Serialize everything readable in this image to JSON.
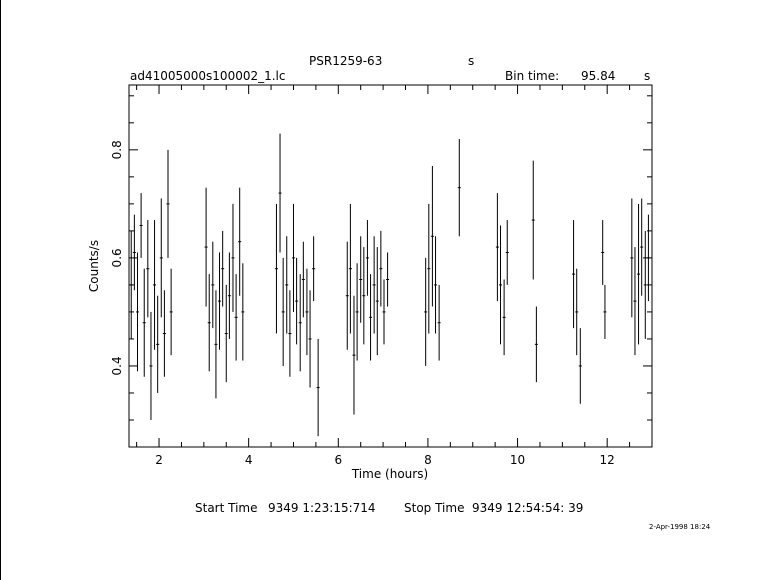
{
  "header": {
    "object": "PSR1259-63",
    "object_unit": "s",
    "filename": "ad41005000s100002_1.lc",
    "bin_label": "Bin time:",
    "bin_value": "95.84",
    "bin_unit": "s"
  },
  "footer": {
    "start_label": "Start Time",
    "start_value": "9349  1:23:15:714",
    "stop_label": "Stop Time",
    "stop_value": "9349 12:54:54: 39",
    "date_stamp": "2-Apr-1998 18:24"
  },
  "chart_data": {
    "type": "scatter",
    "xlabel": "Time (hours)",
    "ylabel": "Counts/s",
    "xlim": [
      1.33,
      13.0
    ],
    "ylim": [
      0.25,
      0.92
    ],
    "xticks": [
      2,
      4,
      6,
      8,
      10,
      12
    ],
    "yticks": [
      0.4,
      0.6,
      0.8
    ],
    "error_bars": true,
    "series": [
      {
        "points": [
          [
            1.38,
            0.55,
            0.1
          ],
          [
            1.45,
            0.61,
            0.07
          ],
          [
            1.52,
            0.5,
            0.11
          ],
          [
            1.6,
            0.66,
            0.06
          ],
          [
            1.67,
            0.48,
            0.1
          ],
          [
            1.75,
            0.58,
            0.09
          ],
          [
            1.82,
            0.4,
            0.1
          ],
          [
            1.9,
            0.55,
            0.12
          ],
          [
            1.97,
            0.44,
            0.09
          ],
          [
            2.05,
            0.6,
            0.11
          ],
          [
            2.12,
            0.46,
            0.08
          ],
          [
            2.2,
            0.7,
            0.1
          ],
          [
            2.27,
            0.5,
            0.08
          ],
          [
            3.05,
            0.62,
            0.11
          ],
          [
            3.12,
            0.48,
            0.09
          ],
          [
            3.2,
            0.55,
            0.08
          ],
          [
            3.27,
            0.44,
            0.1
          ],
          [
            3.35,
            0.52,
            0.09
          ],
          [
            3.42,
            0.58,
            0.07
          ],
          [
            3.5,
            0.46,
            0.09
          ],
          [
            3.57,
            0.53,
            0.08
          ],
          [
            3.65,
            0.6,
            0.1
          ],
          [
            3.72,
            0.49,
            0.08
          ],
          [
            3.8,
            0.63,
            0.1
          ],
          [
            3.87,
            0.5,
            0.09
          ],
          [
            4.62,
            0.58,
            0.12
          ],
          [
            4.7,
            0.72,
            0.11
          ],
          [
            4.77,
            0.5,
            0.1
          ],
          [
            4.85,
            0.55,
            0.09
          ],
          [
            4.92,
            0.46,
            0.08
          ],
          [
            5.0,
            0.6,
            0.1
          ],
          [
            5.07,
            0.52,
            0.08
          ],
          [
            5.15,
            0.48,
            0.09
          ],
          [
            5.22,
            0.56,
            0.07
          ],
          [
            5.3,
            0.5,
            0.08
          ],
          [
            5.37,
            0.45,
            0.09
          ],
          [
            5.45,
            0.58,
            0.06
          ],
          [
            5.55,
            0.36,
            0.09
          ],
          [
            6.2,
            0.53,
            0.1
          ],
          [
            6.27,
            0.58,
            0.12
          ],
          [
            6.35,
            0.42,
            0.11
          ],
          [
            6.42,
            0.5,
            0.09
          ],
          [
            6.5,
            0.56,
            0.08
          ],
          [
            6.57,
            0.53,
            0.09
          ],
          [
            6.65,
            0.6,
            0.07
          ],
          [
            6.72,
            0.49,
            0.08
          ],
          [
            6.8,
            0.55,
            0.09
          ],
          [
            6.87,
            0.52,
            0.1
          ],
          [
            6.95,
            0.58,
            0.07
          ],
          [
            7.02,
            0.5,
            0.06
          ],
          [
            7.1,
            0.56,
            0.05
          ],
          [
            7.95,
            0.5,
            0.1
          ],
          [
            8.02,
            0.58,
            0.12
          ],
          [
            8.1,
            0.64,
            0.13
          ],
          [
            8.17,
            0.55,
            0.09
          ],
          [
            8.25,
            0.48,
            0.07
          ],
          [
            8.7,
            0.73,
            0.09
          ],
          [
            9.55,
            0.62,
            0.1
          ],
          [
            9.62,
            0.55,
            0.11
          ],
          [
            9.7,
            0.49,
            0.07
          ],
          [
            9.77,
            0.61,
            0.06
          ],
          [
            10.35,
            0.67,
            0.11
          ],
          [
            10.42,
            0.44,
            0.07
          ],
          [
            11.25,
            0.57,
            0.1
          ],
          [
            11.32,
            0.5,
            0.08
          ],
          [
            11.4,
            0.4,
            0.07
          ],
          [
            11.9,
            0.61,
            0.06
          ],
          [
            11.95,
            0.5,
            0.05
          ],
          [
            12.55,
            0.6,
            0.11
          ],
          [
            12.62,
            0.52,
            0.1
          ],
          [
            12.7,
            0.57,
            0.13
          ],
          [
            12.77,
            0.62,
            0.09
          ],
          [
            12.85,
            0.55,
            0.1
          ],
          [
            12.92,
            0.6,
            0.08
          ]
        ]
      }
    ]
  }
}
